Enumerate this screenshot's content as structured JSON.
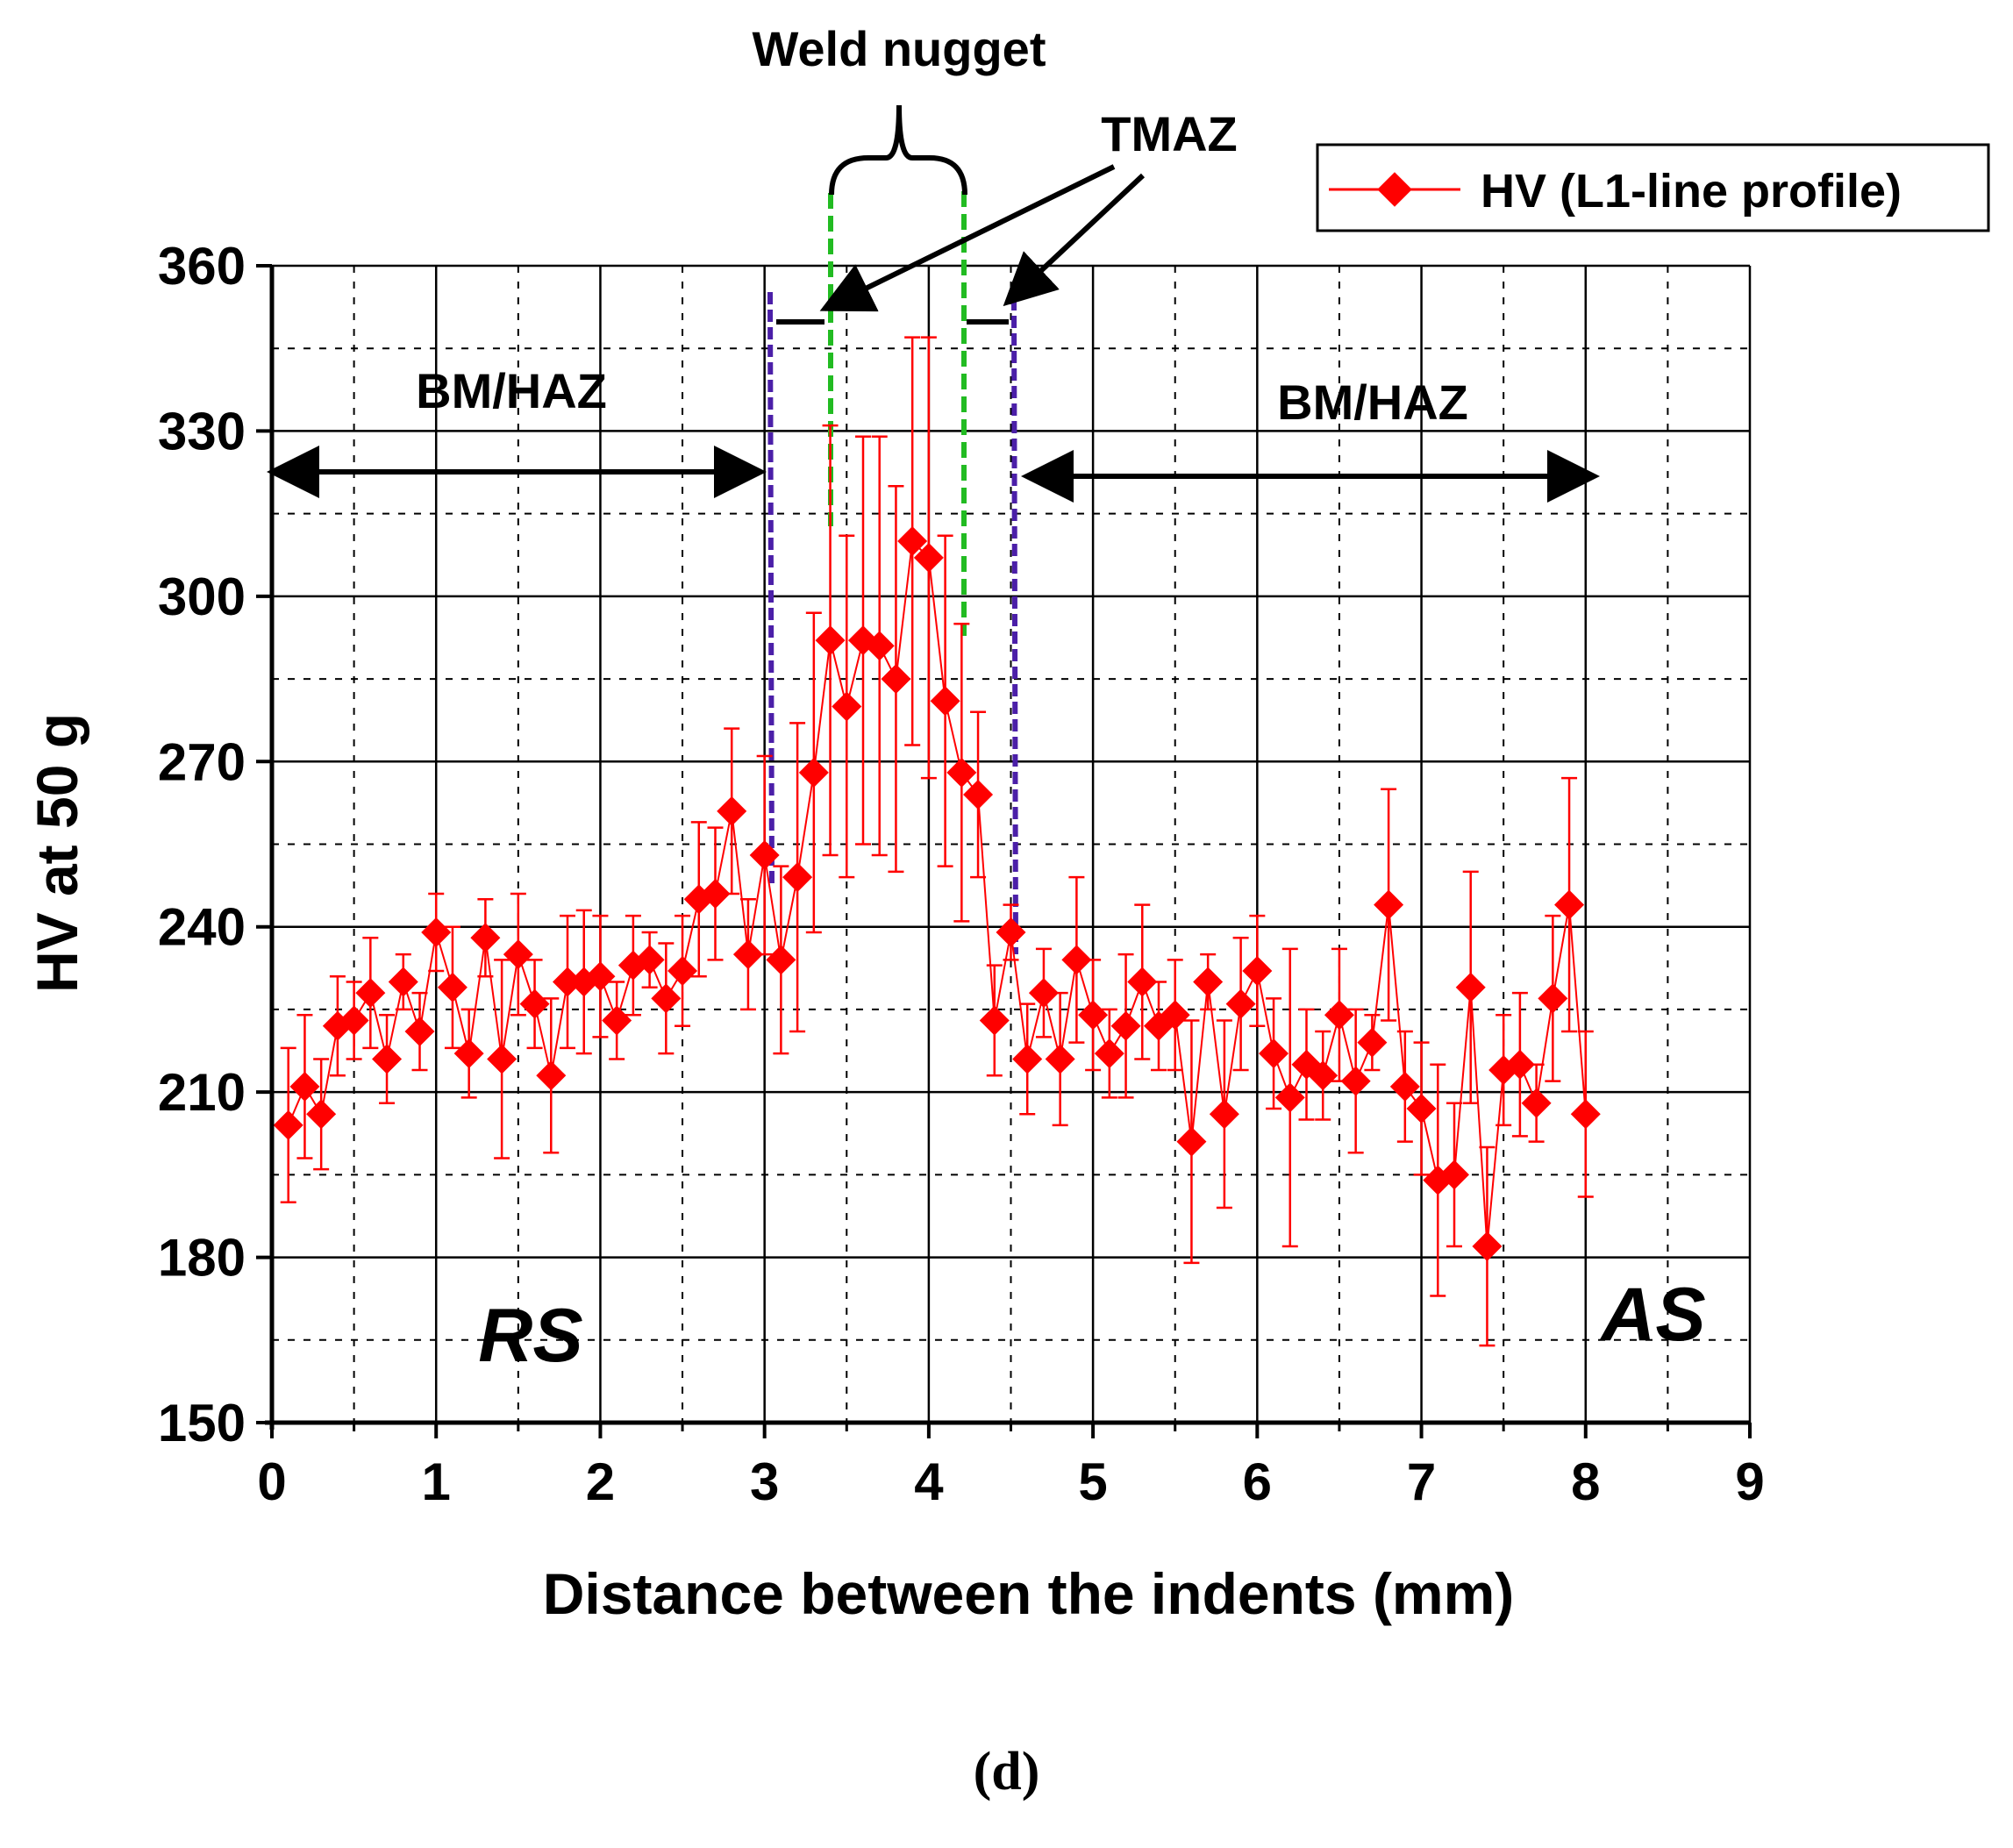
{
  "panel_label": "(d)",
  "chart_data": {
    "type": "scatter",
    "xlabel": "Distance between the indents (mm)",
    "ylabel": "HV at 50 g",
    "xlim": [
      0,
      9
    ],
    "ylim": [
      150,
      360
    ],
    "x_ticks": [
      "0",
      "1",
      "2",
      "3",
      "4",
      "5",
      "6",
      "7",
      "8",
      "9"
    ],
    "y_ticks": [
      "150",
      "180",
      "210",
      "240",
      "270",
      "300",
      "330",
      "360"
    ],
    "grid": true,
    "legend_position": "top-right",
    "series": [
      {
        "name": "HV (L1-line profile)",
        "color": "#ff0000",
        "marker": "diamond",
        "x": [
          0.1,
          0.2,
          0.3,
          0.4,
          0.5,
          0.6,
          0.7,
          0.8,
          0.9,
          1.0,
          1.1,
          1.2,
          1.3,
          1.4,
          1.5,
          1.6,
          1.7,
          1.8,
          1.9,
          2.0,
          2.1,
          2.2,
          2.3,
          2.4,
          2.5,
          2.6,
          2.7,
          2.8,
          2.9,
          3.0,
          3.1,
          3.2,
          3.3,
          3.4,
          3.5,
          3.6,
          3.7,
          3.8,
          3.9,
          4.0,
          4.1,
          4.2,
          4.3,
          4.4,
          4.5,
          4.6,
          4.7,
          4.8,
          4.9,
          5.0,
          5.1,
          5.2,
          5.3,
          5.4,
          5.5,
          5.6,
          5.7,
          5.8,
          5.9,
          6.0,
          6.1,
          6.2,
          6.3,
          6.4,
          6.5,
          6.6,
          6.7,
          6.8,
          6.9,
          7.0,
          7.1,
          7.2,
          7.3,
          7.4,
          7.5,
          7.6,
          7.7,
          7.8,
          7.9,
          8.0
        ],
        "y": [
          204,
          211,
          206,
          222,
          223,
          228,
          216,
          230,
          221,
          239,
          229,
          217,
          238,
          216,
          235,
          226,
          213,
          230,
          230,
          231,
          223,
          233,
          234,
          227,
          232,
          245,
          246,
          261,
          235,
          253,
          234,
          249,
          268,
          292,
          280,
          292,
          291,
          285,
          310,
          307,
          281,
          268,
          264,
          223,
          239,
          216,
          228,
          216,
          234,
          224,
          217,
          222,
          230,
          222,
          224,
          201,
          230,
          206,
          226,
          232,
          217,
          209,
          215,
          213,
          224,
          212,
          219,
          244,
          211,
          207,
          194,
          195,
          229,
          182,
          214,
          215,
          208,
          227,
          244,
          206
        ],
        "error": [
          14,
          13,
          10,
          9,
          7,
          10,
          8,
          5,
          7,
          7,
          11,
          8,
          7,
          18,
          11,
          8,
          14,
          12,
          13,
          11,
          7,
          9,
          5,
          10,
          10,
          14,
          12,
          15,
          10,
          18,
          17,
          28,
          29,
          39,
          31,
          37,
          38,
          35,
          37,
          40,
          30,
          27,
          15,
          10,
          5,
          10,
          8,
          12,
          15,
          10,
          8,
          13,
          14,
          8,
          10,
          22,
          5,
          17,
          12,
          10,
          10,
          27,
          10,
          8,
          12,
          13,
          5,
          21,
          10,
          12,
          21,
          13,
          21,
          18,
          10,
          13,
          7,
          15,
          23,
          15
        ]
      }
    ],
    "annotations": {
      "weld_nugget": "Weld nugget",
      "tmaz": "TMAZ",
      "bm_haz_left": "BM/HAZ",
      "bm_haz_right": "BM/HAZ",
      "rs": "RS",
      "as": "AS"
    }
  }
}
